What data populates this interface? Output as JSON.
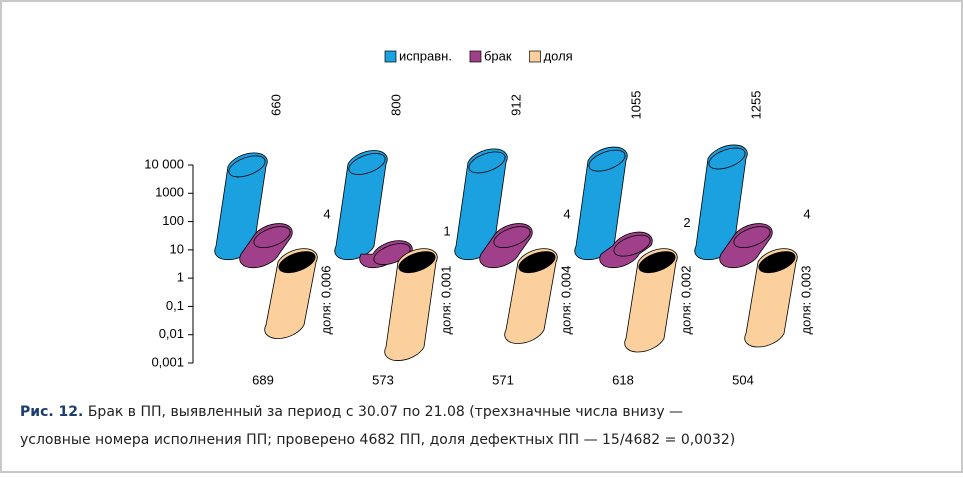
{
  "chart_data": {
    "type": "cylinder",
    "categories": [
      "689",
      "573",
      "571",
      "618",
      "504"
    ],
    "series": [
      {
        "name": "исправн.",
        "color": "#1ba0e0",
        "values": [
          660,
          800,
          912,
          1055,
          1255
        ]
      },
      {
        "name": "брак",
        "color": "#a0408a",
        "values": [
          4,
          1,
          4,
          2,
          4
        ]
      },
      {
        "name": "доля",
        "color": "#fbd09c",
        "values": [
          0.006,
          0.001,
          0.004,
          0.002,
          0.003
        ],
        "value_labels": [
          "доля: 0,006",
          "доля: 0,001",
          "доля: 0,004",
          "доля: 0,002",
          "доля: 0,003"
        ]
      }
    ],
    "ylim": [
      0.001,
      10000
    ],
    "log_scale": true,
    "yticks": [
      {
        "value": 0.001,
        "label": "0,001"
      },
      {
        "value": 0.01,
        "label": "0,01"
      },
      {
        "value": 0.1,
        "label": "0,1"
      },
      1,
      10,
      100,
      1000,
      {
        "value": 10000,
        "label": "10 000"
      }
    ],
    "legend": "top"
  },
  "caption": {
    "label": "Рис. 12.",
    "lines": [
      "Брак в ПП, выявленный за период с 30.07 по 21.08 (трехзначные числа внизу —",
      "условные номера исполнения ПП; проверено 4682 ПП, доля дефектных ПП — 15/4682 = 0,0032)"
    ]
  }
}
